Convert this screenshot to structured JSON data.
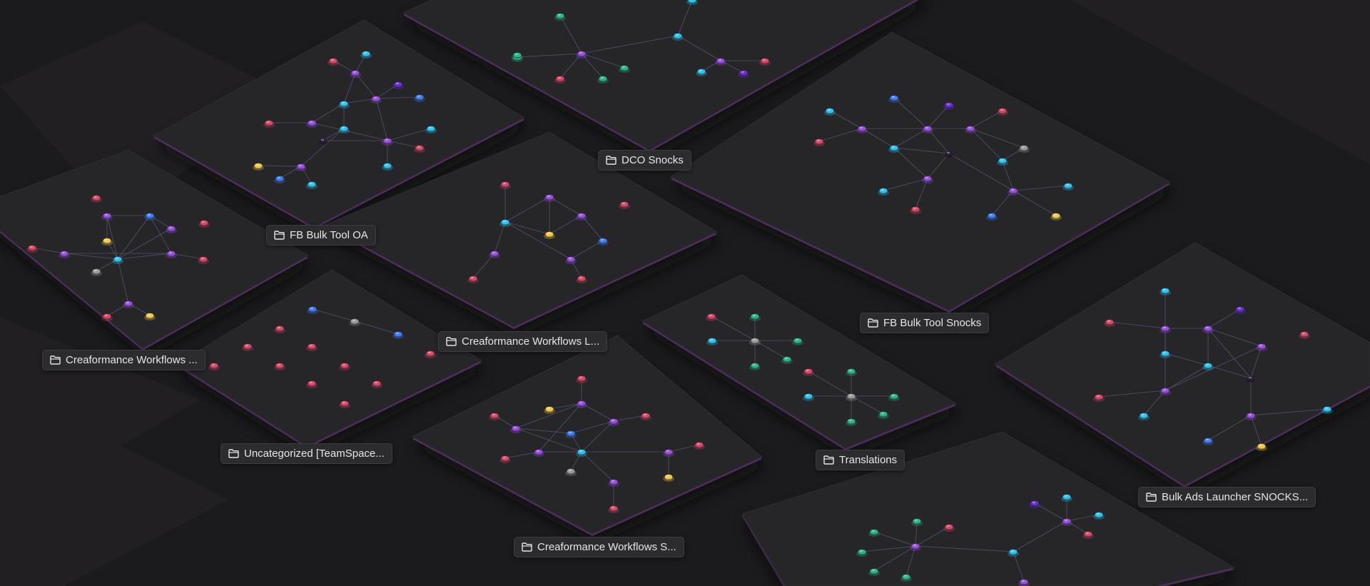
{
  "workspace": {
    "background": "#1b1a1c",
    "tile_color": "#262527",
    "tile_edge_color": "#5a2f6e",
    "edge_color": "#4a4f66",
    "node_colors": {
      "purple": "#9a4fe0",
      "cyan": "#2fc3f0",
      "blue": "#3f7ef5",
      "pink": "#d9476a",
      "green": "#2db58a",
      "yellow": "#f0c948",
      "gray": "#9a9a9a",
      "violet": "#6a2fd8",
      "dark": "#2a1f34"
    },
    "folders": [
      {
        "id": "dco-snocks",
        "label": "DCO Snocks",
        "icon": "folder-icon"
      },
      {
        "id": "fb-bulk-tool-oa",
        "label": "FB Bulk Tool OA",
        "icon": "folder-icon"
      },
      {
        "id": "creaformance-workflows-1",
        "label": "Creaformance Workflows ...",
        "icon": "folder-icon"
      },
      {
        "id": "creaformance-workflows-l",
        "label": "Creaformance Workflows L...",
        "icon": "folder-icon"
      },
      {
        "id": "fb-bulk-tool-snocks",
        "label": "FB Bulk Tool Snocks",
        "icon": "folder-icon"
      },
      {
        "id": "uncategorized-teamspace",
        "label": "Uncategorized [TeamSpace...",
        "icon": "folder-icon"
      },
      {
        "id": "translations",
        "label": "Translations",
        "icon": "folder-icon"
      },
      {
        "id": "bulk-ads-launcher-snocks",
        "label": "Bulk Ads Launcher SNOCKS...",
        "icon": "folder-icon"
      },
      {
        "id": "creaformance-workflows-s",
        "label": "Creaformance Workflows S...",
        "icon": "folder-icon"
      }
    ]
  }
}
